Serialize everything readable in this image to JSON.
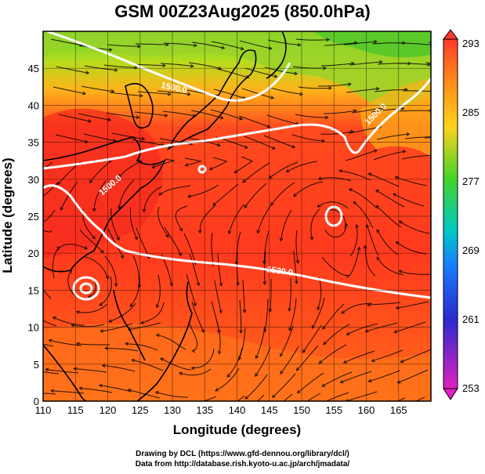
{
  "title": "GSM 00Z23Aug2025 (850.0hPa)",
  "axes": {
    "xlabel": "Longitude (degrees)",
    "ylabel": "Latitude  (degrees)",
    "xticks": [
      "110",
      "115",
      "120",
      "125",
      "130",
      "135",
      "140",
      "145",
      "150",
      "155",
      "160",
      "165"
    ],
    "yticks": [
      "0",
      "5",
      "10",
      "15",
      "20",
      "25",
      "30",
      "35",
      "40",
      "45"
    ],
    "xlim": [
      110,
      170
    ],
    "ylim": [
      0,
      50
    ]
  },
  "colorbar": {
    "labels": [
      "293",
      "285",
      "277",
      "269",
      "261",
      "253"
    ],
    "range": [
      253,
      293
    ]
  },
  "contour_labels": [
    "1500.0",
    "1520.0",
    "1500.0",
    "1500.0"
  ],
  "credit": {
    "line1": "Drawing by DCL (https://www.gfd-dennou.org/library/dcl/)",
    "line2": "Data from http://database.rish.kyoto-u.ac.jp/arch/jmadata/"
  },
  "colors": {
    "warm": "#ff3a1e",
    "orange": "#ff7a1a",
    "yellow": "#ffc21a",
    "green": "#55d12a",
    "contour": "#ffffff"
  }
}
